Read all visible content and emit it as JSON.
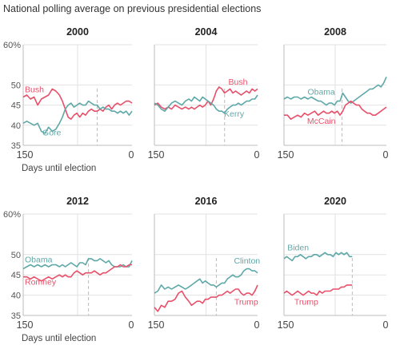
{
  "title": "National polling average on previous presidential elections",
  "colors": {
    "democrat": "#5fa8a8",
    "republican": "#e8506a",
    "grid": "#e2e2e2",
    "frame": "#bdbdbd",
    "marker": "#bbbbbb"
  },
  "chart_data": [
    {
      "type": "line",
      "title": "2000",
      "xlabel": "Days until election",
      "xlim": [
        150,
        0
      ],
      "ylim": [
        35,
        60
      ],
      "yticks": [
        35,
        40,
        45,
        50,
        60
      ],
      "ytick_labels": [
        "35",
        "40",
        "45",
        "50",
        "60%"
      ],
      "xtick_labels": [
        "150",
        "0"
      ],
      "marker_day": 48,
      "series": [
        {
          "name": "Bush",
          "party": "republican",
          "x": [
            150,
            145,
            140,
            135,
            130,
            125,
            120,
            115,
            110,
            105,
            100,
            96,
            92,
            88,
            84,
            80,
            76,
            72,
            68,
            64,
            60,
            56,
            52,
            48,
            44,
            40,
            36,
            32,
            28,
            24,
            20,
            16,
            12,
            8,
            4,
            0
          ],
          "y": [
            47,
            47.5,
            46.5,
            47,
            45,
            46.5,
            47,
            47.5,
            49,
            48.5,
            47.5,
            46,
            44,
            42,
            41.5,
            42.5,
            43,
            42,
            43,
            42.5,
            43.5,
            44,
            43.5,
            43.5,
            44,
            43.5,
            44.5,
            45,
            44,
            45,
            45.5,
            45,
            45.5,
            46,
            46,
            45.5
          ]
        },
        {
          "name": "Gore",
          "party": "democrat",
          "x": [
            150,
            145,
            140,
            135,
            130,
            125,
            120,
            115,
            110,
            105,
            100,
            96,
            92,
            88,
            84,
            80,
            76,
            72,
            68,
            64,
            60,
            56,
            52,
            48,
            44,
            40,
            36,
            32,
            28,
            24,
            20,
            16,
            12,
            8,
            4,
            0
          ],
          "y": [
            40.5,
            41,
            40.5,
            40,
            40.5,
            38.5,
            38,
            39.5,
            38.5,
            39,
            40.5,
            42,
            44,
            45,
            45.5,
            44.5,
            45,
            45.5,
            45,
            45,
            46,
            45.5,
            45,
            45,
            44,
            44.5,
            44,
            44,
            43.5,
            43.5,
            43,
            43.5,
            43,
            43.5,
            42.5,
            43.5
          ]
        }
      ]
    },
    {
      "type": "line",
      "title": "2004",
      "xlabel": "",
      "xlim": [
        150,
        0
      ],
      "ylim": [
        35,
        60
      ],
      "yticks": [
        35,
        40,
        45,
        50,
        60
      ],
      "ytick_labels": [],
      "xtick_labels": [
        "150",
        "0"
      ],
      "marker_day": 48,
      "series": [
        {
          "name": "Bush",
          "party": "republican",
          "x": [
            150,
            145,
            140,
            135,
            130,
            125,
            120,
            115,
            110,
            105,
            100,
            96,
            92,
            88,
            84,
            80,
            76,
            72,
            68,
            64,
            60,
            56,
            52,
            48,
            44,
            40,
            36,
            32,
            28,
            24,
            20,
            16,
            12,
            8,
            4,
            0
          ],
          "y": [
            45,
            45.5,
            44.5,
            44,
            44.5,
            44,
            45,
            44.5,
            44,
            44.5,
            44,
            44.5,
            44,
            44.5,
            45,
            44.5,
            45,
            46,
            45,
            46.5,
            48.5,
            49.5,
            49,
            48,
            48.5,
            49,
            48,
            48.5,
            48,
            47.5,
            48,
            48.5,
            48,
            49,
            48.5,
            49
          ]
        },
        {
          "name": "Kerry",
          "party": "democrat",
          "x": [
            150,
            145,
            140,
            135,
            130,
            125,
            120,
            115,
            110,
            105,
            100,
            96,
            92,
            88,
            84,
            80,
            76,
            72,
            68,
            64,
            60,
            56,
            52,
            48,
            44,
            40,
            36,
            32,
            28,
            24,
            20,
            16,
            12,
            8,
            4,
            0
          ],
          "y": [
            45.5,
            45,
            44,
            43.5,
            44.5,
            45.5,
            46,
            45.5,
            45,
            46,
            46.5,
            46,
            47,
            46.5,
            46,
            47,
            46.5,
            46,
            45.5,
            45,
            44,
            43.5,
            43.5,
            43,
            44,
            44.5,
            45,
            45,
            45.5,
            45,
            45.5,
            46,
            46,
            46.5,
            46.5,
            47.5
          ]
        }
      ]
    },
    {
      "type": "line",
      "title": "2008",
      "xlabel": "",
      "xlim": [
        150,
        0
      ],
      "ylim": [
        35,
        60
      ],
      "yticks": [
        35,
        40,
        45,
        50,
        60
      ],
      "ytick_labels": [],
      "xtick_labels": [
        "150",
        "0"
      ],
      "marker_day": 65,
      "series": [
        {
          "name": "Obama",
          "party": "democrat",
          "x": [
            150,
            145,
            140,
            135,
            130,
            125,
            120,
            115,
            110,
            105,
            100,
            96,
            92,
            88,
            84,
            80,
            76,
            72,
            68,
            64,
            60,
            56,
            52,
            48,
            44,
            40,
            36,
            32,
            28,
            24,
            20,
            16,
            12,
            8,
            4,
            0
          ],
          "y": [
            46.5,
            47,
            46.5,
            47,
            47,
            46.5,
            47,
            46.5,
            47,
            46.5,
            46,
            46,
            45.5,
            45,
            45.5,
            45.5,
            45,
            46,
            46,
            48,
            47,
            46,
            45.5,
            46,
            46.5,
            47,
            47.5,
            48,
            48.5,
            49,
            49,
            49.5,
            50,
            49.5,
            50.5,
            52
          ]
        },
        {
          "name": "McCain",
          "party": "republican",
          "x": [
            150,
            145,
            140,
            135,
            130,
            125,
            120,
            115,
            110,
            105,
            100,
            96,
            92,
            88,
            84,
            80,
            76,
            72,
            68,
            64,
            60,
            56,
            52,
            48,
            44,
            40,
            36,
            32,
            28,
            24,
            20,
            16,
            12,
            8,
            4,
            0
          ],
          "y": [
            42.5,
            42.5,
            41.5,
            42,
            42.5,
            42,
            43,
            42.5,
            43,
            43.5,
            42.5,
            43,
            43.5,
            43,
            43,
            43.5,
            43,
            43.5,
            42.5,
            43.5,
            45,
            45.5,
            46,
            45.5,
            45,
            45,
            44,
            43.5,
            43,
            43,
            42.5,
            42.5,
            43,
            43.5,
            44,
            44.5
          ]
        }
      ]
    },
    {
      "type": "line",
      "title": "2012",
      "xlabel": "Days until election",
      "xlim": [
        150,
        0
      ],
      "ylim": [
        35,
        60
      ],
      "yticks": [
        35,
        40,
        45,
        50,
        60
      ],
      "ytick_labels": [
        "35",
        "40",
        "45",
        "50",
        "60%"
      ],
      "xtick_labels": [
        "150",
        "0"
      ],
      "marker_day": 60,
      "series": [
        {
          "name": "Obama",
          "party": "democrat",
          "x": [
            150,
            145,
            140,
            135,
            130,
            125,
            120,
            115,
            110,
            105,
            100,
            96,
            92,
            88,
            84,
            80,
            76,
            72,
            68,
            64,
            60,
            56,
            52,
            48,
            44,
            40,
            36,
            32,
            28,
            24,
            20,
            16,
            12,
            8,
            4,
            0
          ],
          "y": [
            46.5,
            47,
            47.5,
            47,
            47.5,
            47,
            47.5,
            47,
            47.5,
            47.5,
            47,
            47.5,
            47,
            47.5,
            48,
            47.5,
            47,
            48,
            48,
            47.5,
            49,
            49,
            48.5,
            48.5,
            49,
            48.5,
            48,
            48.5,
            47.5,
            47,
            47,
            47,
            47.5,
            47,
            47,
            48.5
          ]
        },
        {
          "name": "Romney",
          "party": "republican",
          "x": [
            150,
            145,
            140,
            135,
            130,
            125,
            120,
            115,
            110,
            105,
            100,
            96,
            92,
            88,
            84,
            80,
            76,
            72,
            68,
            64,
            60,
            56,
            52,
            48,
            44,
            40,
            36,
            32,
            28,
            24,
            20,
            16,
            12,
            8,
            4,
            0
          ],
          "y": [
            44.5,
            44.5,
            44,
            44.5,
            44,
            43.5,
            44,
            44.5,
            44,
            44.5,
            45,
            44.5,
            45,
            44.5,
            44.5,
            45.5,
            46,
            45.5,
            45,
            45.5,
            45.5,
            45.5,
            46,
            45.5,
            45,
            45.5,
            45.5,
            46,
            46.5,
            47,
            47,
            47.5,
            47,
            47,
            47.5,
            47.5
          ]
        }
      ]
    },
    {
      "type": "line",
      "title": "2016",
      "xlabel": "",
      "xlim": [
        150,
        0
      ],
      "ylim": [
        35,
        60
      ],
      "yticks": [
        35,
        40,
        45,
        50,
        60
      ],
      "ytick_labels": [],
      "xtick_labels": [
        "150",
        "0"
      ],
      "marker_day": 60,
      "series": [
        {
          "name": "Clinton",
          "party": "democrat",
          "x": [
            150,
            145,
            140,
            135,
            130,
            125,
            120,
            115,
            110,
            105,
            100,
            96,
            92,
            88,
            84,
            80,
            76,
            72,
            68,
            64,
            60,
            56,
            52,
            48,
            44,
            40,
            36,
            32,
            28,
            24,
            20,
            16,
            12,
            8,
            4,
            0
          ],
          "y": [
            40.5,
            41,
            42.5,
            41.5,
            42,
            41.5,
            42,
            42.5,
            42,
            41.5,
            42,
            42.5,
            43,
            43.5,
            44,
            43,
            43.5,
            43,
            42.5,
            42.5,
            42,
            42.5,
            43,
            43,
            44,
            44.5,
            45,
            44.5,
            44.5,
            45,
            46,
            46.5,
            46.5,
            46,
            46,
            45.5
          ]
        },
        {
          "name": "Trump",
          "party": "republican",
          "x": [
            150,
            145,
            140,
            135,
            130,
            125,
            120,
            115,
            110,
            105,
            100,
            96,
            92,
            88,
            84,
            80,
            76,
            72,
            68,
            64,
            60,
            56,
            52,
            48,
            44,
            40,
            36,
            32,
            28,
            24,
            20,
            16,
            12,
            8,
            4,
            0
          ],
          "y": [
            37,
            36,
            37.5,
            37,
            38.5,
            38.5,
            39,
            40.5,
            41,
            39.5,
            38.5,
            37.5,
            38,
            38.5,
            38.5,
            38,
            39,
            39,
            39.5,
            39.5,
            39.5,
            40,
            40,
            40.5,
            41,
            40.5,
            41,
            41.5,
            41.5,
            40.5,
            40,
            40.5,
            40.5,
            40,
            41,
            42.5
          ]
        }
      ]
    },
    {
      "type": "line",
      "title": "2020",
      "xlabel": "",
      "xlim": [
        150,
        0
      ],
      "ylim": [
        35,
        60
      ],
      "yticks": [
        35,
        40,
        45,
        50,
        60
      ],
      "ytick_labels": [],
      "xtick_labels": [
        "150",
        "0"
      ],
      "marker_day": 50,
      "series": [
        {
          "name": "Biden",
          "party": "democrat",
          "x": [
            150,
            146,
            142,
            138,
            134,
            130,
            126,
            122,
            118,
            114,
            110,
            106,
            102,
            98,
            94,
            90,
            86,
            82,
            78,
            74,
            70,
            66,
            62,
            58,
            54,
            50
          ],
          "y": [
            49,
            49.5,
            49,
            48.5,
            49.5,
            49.5,
            50,
            49.5,
            49,
            49.5,
            49.5,
            50,
            50,
            49.5,
            50,
            50.5,
            50,
            50,
            49.5,
            50.5,
            50,
            50.5,
            50,
            50.5,
            49.5,
            49.5
          ]
        },
        {
          "name": "Trump",
          "party": "republican",
          "x": [
            150,
            146,
            142,
            138,
            134,
            130,
            126,
            122,
            118,
            114,
            110,
            106,
            102,
            98,
            94,
            90,
            86,
            82,
            78,
            74,
            70,
            66,
            62,
            58,
            54,
            50
          ],
          "y": [
            40.5,
            41,
            40.5,
            40,
            40.5,
            41,
            40.5,
            40,
            40.5,
            41,
            40.5,
            40.5,
            40,
            41,
            40.5,
            41,
            41,
            41,
            41.5,
            41.5,
            41.5,
            42,
            42,
            42.5,
            42.5,
            42.5
          ]
        }
      ]
    }
  ]
}
